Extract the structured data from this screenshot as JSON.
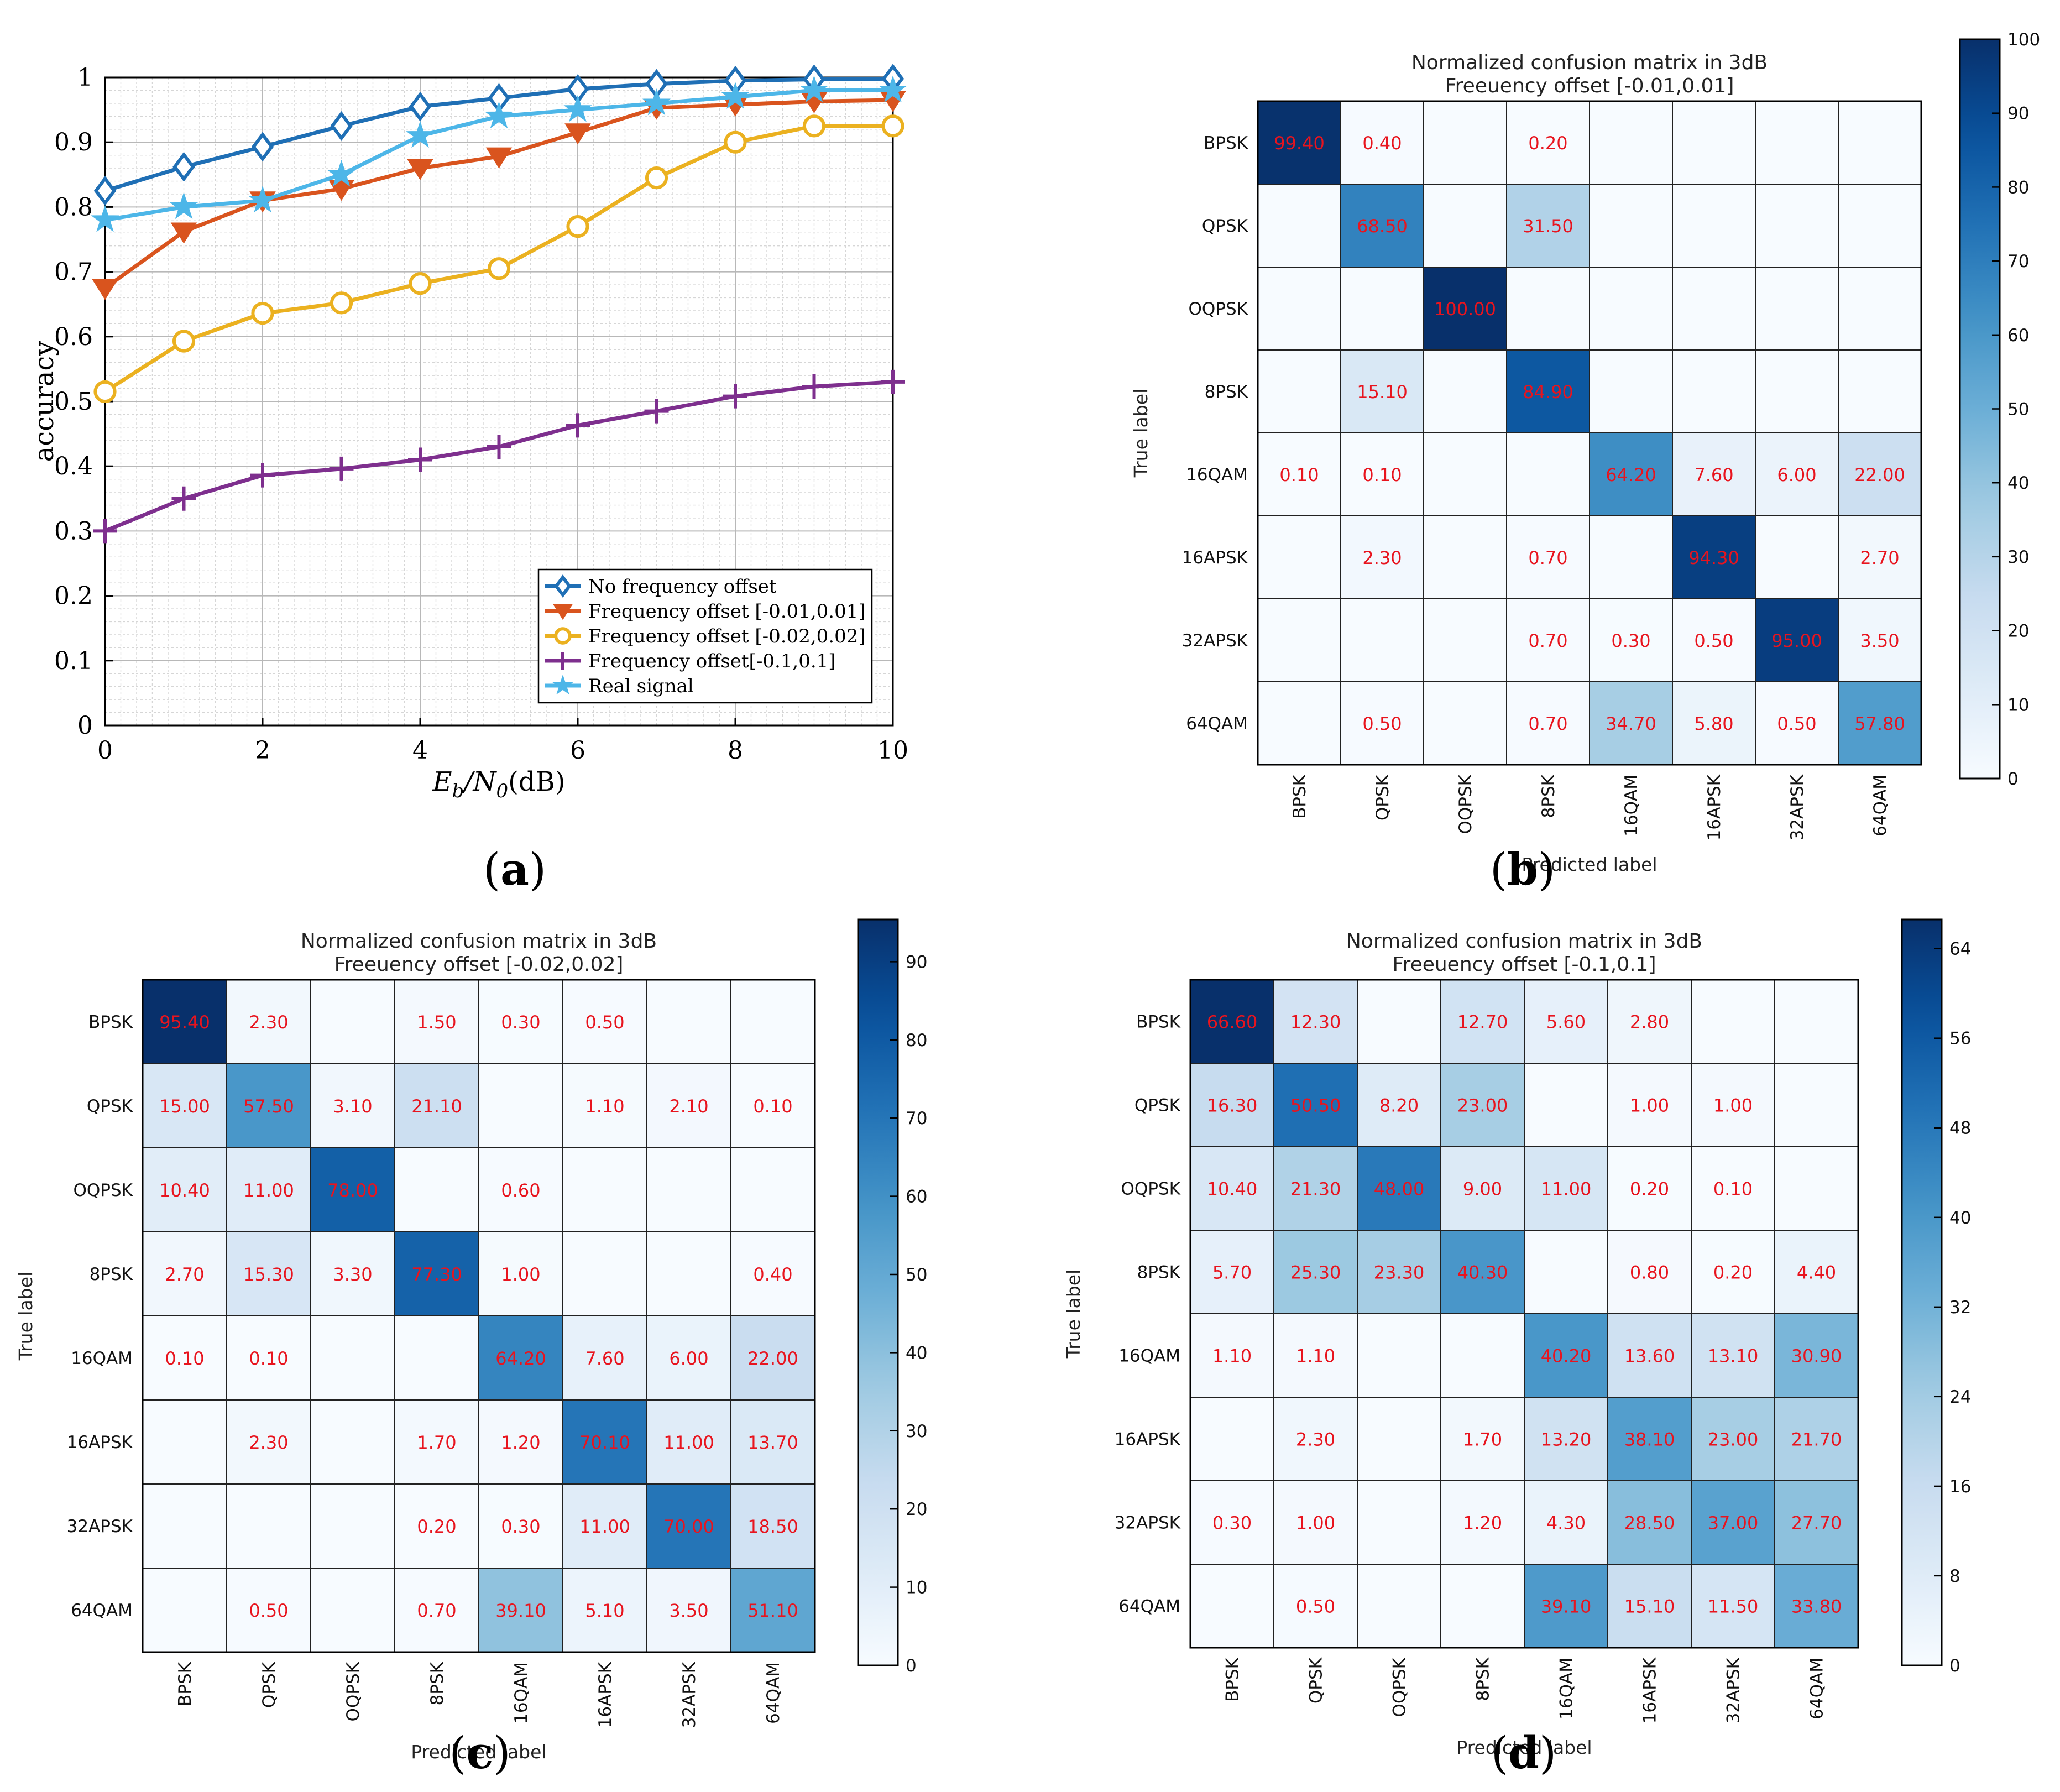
{
  "chart_data": [
    {
      "panel": "a",
      "caption_letter": "a",
      "type": "line",
      "title": "",
      "xlabel": "E_b/N_0(dB)",
      "xlabel_parts": {
        "main": "E",
        "sub1": "b",
        "mid": "/N",
        "sub2": "0",
        "unit": "(dB)"
      },
      "ylabel": "accuracy",
      "xlim": [
        0,
        10
      ],
      "ylim": [
        0,
        1
      ],
      "grid": true,
      "legend_position": "bottom-right",
      "x_ticks": [
        0,
        2,
        4,
        6,
        8,
        10
      ],
      "y_ticks": [
        0,
        0.1,
        0.2,
        0.3,
        0.4,
        0.5,
        0.6,
        0.7,
        0.8,
        0.9,
        1
      ],
      "y_tick_labels": [
        "0",
        "0.1",
        "0.2",
        "0.3",
        "0.4",
        "0.5",
        "0.6",
        "0.7",
        "0.8",
        "0.9",
        "1"
      ],
      "x": [
        0,
        1,
        2,
        3,
        4,
        5,
        6,
        7,
        8,
        9,
        10
      ],
      "series": [
        {
          "name": "No frequency offset",
          "color": "#1f6fb5",
          "marker": "diamond",
          "values": [
            0.825,
            0.862,
            0.893,
            0.925,
            0.955,
            0.968,
            0.982,
            0.99,
            0.995,
            0.997,
            0.998
          ]
        },
        {
          "name": "Frequency offset [-0.01,0.01]",
          "color": "#d9541e",
          "marker": "triangle-down",
          "values": [
            0.675,
            0.762,
            0.81,
            0.828,
            0.86,
            0.878,
            0.915,
            0.953,
            0.958,
            0.963,
            0.965
          ]
        },
        {
          "name": "Frequency offset [-0.02,0.02]",
          "color": "#ebb120",
          "marker": "circle",
          "values": [
            0.515,
            0.593,
            0.636,
            0.652,
            0.682,
            0.705,
            0.77,
            0.845,
            0.9,
            0.925,
            0.925
          ]
        },
        {
          "name": "Frequency offset[-0.1,0.1]",
          "color": "#7e2f8e",
          "marker": "plus",
          "values": [
            0.3,
            0.35,
            0.386,
            0.396,
            0.41,
            0.43,
            0.463,
            0.485,
            0.508,
            0.523,
            0.53
          ]
        },
        {
          "name": "Real signal",
          "color": "#4db6e8",
          "marker": "star",
          "values": [
            0.78,
            0.8,
            0.81,
            0.85,
            0.91,
            0.94,
            0.95,
            0.96,
            0.97,
            0.98,
            0.98
          ]
        }
      ]
    },
    {
      "panel": "b",
      "caption_letter": "b",
      "type": "heatmap",
      "title": "Normalized confusion matrix in 3dB",
      "subtitle": "Freeuency offset [-0.01,0.01]",
      "xlabel": "Predicted label",
      "ylabel": "True label",
      "labels": [
        "BPSK",
        "QPSK",
        "OQPSK",
        "8PSK",
        "16QAM",
        "16APSK",
        "32APSK",
        "64QAM"
      ],
      "values": [
        [
          99.4,
          0.4,
          null,
          0.2,
          null,
          null,
          null,
          null
        ],
        [
          null,
          68.5,
          null,
          31.5,
          null,
          null,
          null,
          null
        ],
        [
          null,
          null,
          100.0,
          null,
          null,
          null,
          null,
          null
        ],
        [
          null,
          15.1,
          null,
          84.9,
          null,
          null,
          null,
          null
        ],
        [
          0.1,
          0.1,
          null,
          null,
          64.2,
          7.6,
          6.0,
          22.0
        ],
        [
          null,
          2.3,
          null,
          0.7,
          null,
          94.3,
          null,
          2.7
        ],
        [
          null,
          null,
          null,
          0.7,
          0.3,
          0.5,
          95.0,
          3.5
        ],
        [
          null,
          0.5,
          null,
          0.7,
          34.7,
          5.8,
          0.5,
          57.8
        ]
      ],
      "cell_text": [
        [
          "99.40",
          "0.40",
          "",
          "0.20",
          "",
          "",
          "",
          ""
        ],
        [
          "",
          "68.50",
          "",
          "31.50",
          "",
          "",
          "",
          ""
        ],
        [
          "",
          "",
          "100.00",
          "",
          "",
          "",
          "",
          ""
        ],
        [
          "",
          "15.10",
          "",
          "84.90",
          "",
          "",
          "",
          ""
        ],
        [
          "0.10",
          "0.10",
          "",
          "",
          "64.20",
          "7.60",
          "6.00",
          "22.00"
        ],
        [
          "",
          "2.30",
          "",
          "0.70",
          "",
          "94.30",
          "",
          "2.70"
        ],
        [
          "",
          "",
          "",
          "0.70",
          "0.30",
          "0.50",
          "95.00",
          "3.50"
        ],
        [
          "",
          "0.50",
          "",
          "0.70",
          "34.70",
          "5.80",
          "0.50",
          "57.80"
        ]
      ],
      "vmax": 100,
      "colorbar_ticks": [
        0,
        10,
        20,
        30,
        40,
        50,
        60,
        70,
        80,
        90,
        100
      ],
      "colorbar_tick_labels": [
        "0",
        "10",
        "20",
        "30",
        "40",
        "50",
        "60",
        "70",
        "80",
        "90",
        "100"
      ]
    },
    {
      "panel": "c",
      "caption_letter": "c",
      "type": "heatmap",
      "title": "Normalized confusion matrix in 3dB",
      "subtitle": "Freeuency offset [-0.02,0.02]",
      "xlabel": "Predicted label",
      "ylabel": "True label",
      "labels": [
        "BPSK",
        "QPSK",
        "OQPSK",
        "8PSK",
        "16QAM",
        "16APSK",
        "32APSK",
        "64QAM"
      ],
      "values": [
        [
          95.4,
          2.3,
          null,
          1.5,
          0.3,
          0.5,
          null,
          null
        ],
        [
          15.0,
          57.5,
          3.1,
          21.1,
          null,
          1.1,
          2.1,
          0.1
        ],
        [
          10.4,
          11.0,
          78.0,
          null,
          0.6,
          null,
          null,
          null
        ],
        [
          2.7,
          15.3,
          3.3,
          77.3,
          1.0,
          null,
          null,
          0.4
        ],
        [
          0.1,
          0.1,
          null,
          null,
          64.2,
          7.6,
          6.0,
          22.0
        ],
        [
          null,
          2.3,
          null,
          1.7,
          1.2,
          70.1,
          11.0,
          13.7
        ],
        [
          null,
          null,
          null,
          0.2,
          0.3,
          11.0,
          70.0,
          18.5
        ],
        [
          null,
          0.5,
          null,
          0.7,
          39.1,
          5.1,
          3.5,
          51.1
        ]
      ],
      "cell_text": [
        [
          "95.40",
          "2.30",
          "",
          "1.50",
          "0.30",
          "0.50",
          "",
          ""
        ],
        [
          "15.00",
          "57.50",
          "3.10",
          "21.10",
          "",
          "1.10",
          "2.10",
          "0.10"
        ],
        [
          "10.40",
          "11.00",
          "78.00",
          "",
          "0.60",
          "",
          "",
          ""
        ],
        [
          "2.70",
          "15.30",
          "3.30",
          "77.30",
          "1.00",
          "",
          "",
          "0.40"
        ],
        [
          "0.10",
          "0.10",
          "",
          "",
          "64.20",
          "7.60",
          "6.00",
          "22.00"
        ],
        [
          "",
          "2.30",
          "",
          "1.70",
          "1.20",
          "70.10",
          "11.00",
          "13.70"
        ],
        [
          "",
          "",
          "",
          "0.20",
          "0.30",
          "11.00",
          "70.00",
          "18.50"
        ],
        [
          "",
          "0.50",
          "",
          "0.70",
          "39.10",
          "5.10",
          "3.50",
          "51.10"
        ]
      ],
      "vmax": 95.4,
      "colorbar_ticks": [
        0,
        10,
        20,
        30,
        40,
        50,
        60,
        70,
        80,
        90
      ],
      "colorbar_tick_labels": [
        "0",
        "10",
        "20",
        "30",
        "40",
        "50",
        "60",
        "70",
        "80",
        "90"
      ]
    },
    {
      "panel": "d",
      "caption_letter": "d",
      "type": "heatmap",
      "title": "Normalized confusion matrix in 3dB",
      "subtitle": "Freeuency offset [-0.1,0.1]",
      "xlabel": "Predicted label",
      "ylabel": "True label",
      "labels": [
        "BPSK",
        "QPSK",
        "OQPSK",
        "8PSK",
        "16QAM",
        "16APSK",
        "32APSK",
        "64QAM"
      ],
      "values": [
        [
          66.6,
          12.3,
          null,
          12.7,
          5.6,
          2.8,
          null,
          null
        ],
        [
          16.3,
          50.5,
          8.2,
          23.0,
          null,
          1.0,
          1.0,
          null
        ],
        [
          10.4,
          21.3,
          48.0,
          9.0,
          11.0,
          0.2,
          0.1,
          null
        ],
        [
          5.7,
          25.3,
          23.3,
          40.3,
          null,
          0.8,
          0.2,
          4.4
        ],
        [
          1.1,
          1.1,
          null,
          null,
          40.2,
          13.6,
          13.1,
          30.9
        ],
        [
          null,
          2.3,
          null,
          1.7,
          13.2,
          38.1,
          23.0,
          21.7
        ],
        [
          0.3,
          1.0,
          null,
          1.2,
          4.3,
          28.5,
          37.0,
          27.7
        ],
        [
          null,
          0.5,
          null,
          null,
          39.1,
          15.1,
          11.5,
          33.8
        ]
      ],
      "cell_text": [
        [
          "66.60",
          "12.30",
          "",
          "12.70",
          "5.60",
          "2.80",
          "",
          ""
        ],
        [
          "16.30",
          "50.50",
          "8.20",
          "23.00",
          "",
          "1.00",
          "1.00",
          ""
        ],
        [
          "10.40",
          "21.30",
          "48.00",
          "9.00",
          "11.00",
          "0.20",
          "0.10",
          ""
        ],
        [
          "5.70",
          "25.30",
          "23.30",
          "40.30",
          "",
          "0.80",
          "0.20",
          "4.40"
        ],
        [
          "1.10",
          "1.10",
          "",
          "",
          "40.20",
          "13.60",
          "13.10",
          "30.90"
        ],
        [
          "",
          "2.30",
          "",
          "1.70",
          "13.20",
          "38.10",
          "23.00",
          "21.70"
        ],
        [
          "0.30",
          "1.00",
          "",
          "1.20",
          "4.30",
          "28.50",
          "37.00",
          "27.70"
        ],
        [
          "",
          "0.50",
          "",
          "",
          "39.10",
          "15.10",
          "11.50",
          "33.80"
        ]
      ],
      "vmax": 66.6,
      "colorbar_ticks": [
        0,
        8,
        16,
        24,
        32,
        40,
        48,
        56,
        64
      ],
      "colorbar_tick_labels": [
        "0",
        "8",
        "16",
        "24",
        "32",
        "40",
        "48",
        "56",
        "64"
      ]
    }
  ],
  "colors": {
    "cell_text": "#e8141e",
    "cmap_low": "#f7fbff",
    "cmap_high": "#08306b",
    "grid_line": "#b0b0b0"
  }
}
